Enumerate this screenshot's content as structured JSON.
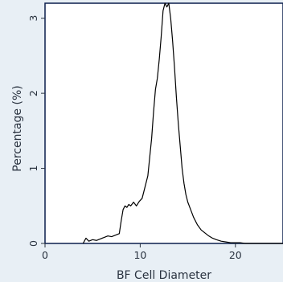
{
  "chart_data": {
    "type": "line",
    "title": "",
    "xlabel": "BF Cell Diameter",
    "ylabel": "Percentage (%)",
    "xlim": [
      0,
      25
    ],
    "ylim": [
      0,
      3.2
    ],
    "grid": false,
    "x_ticks": [
      0,
      10,
      20
    ],
    "x_tick_labels": [
      "0",
      "10",
      "20"
    ],
    "y_ticks": [
      0,
      1,
      2,
      3
    ],
    "y_tick_labels": [
      "0",
      "1",
      "2",
      "3"
    ],
    "colors": {
      "line": "#000000",
      "plot_bg": "#ffffff",
      "page_bg": "#e8eff5",
      "frame": "#0b1f4d"
    },
    "series": [
      {
        "x": [
          4.0,
          4.3,
          4.6,
          5.0,
          5.4,
          5.8,
          6.2,
          6.6,
          7.0,
          7.4,
          7.8,
          8.0,
          8.2,
          8.4,
          8.6,
          8.8,
          9.0,
          9.3,
          9.6,
          9.9,
          10.2,
          10.5,
          10.8,
          11.0,
          11.2,
          11.4,
          11.6,
          11.8,
          12.0,
          12.2,
          12.4,
          12.6,
          12.8,
          13.0,
          13.2,
          13.4,
          13.6,
          13.8,
          14.0,
          14.2,
          14.4,
          14.6,
          14.8,
          15.0,
          15.3,
          15.6,
          16.0,
          16.4,
          16.8,
          17.2,
          17.6,
          18.0,
          18.5,
          19.0,
          19.5,
          20.0,
          20.5,
          21.0,
          21.5,
          22.0,
          23.0,
          24.0,
          25.0
        ],
        "y": [
          0.0,
          0.07,
          0.03,
          0.05,
          0.04,
          0.06,
          0.08,
          0.1,
          0.09,
          0.11,
          0.13,
          0.3,
          0.45,
          0.5,
          0.48,
          0.52,
          0.5,
          0.55,
          0.5,
          0.56,
          0.6,
          0.75,
          0.9,
          1.15,
          1.4,
          1.75,
          2.05,
          2.2,
          2.45,
          2.75,
          3.1,
          3.2,
          3.15,
          3.2,
          3.0,
          2.7,
          2.35,
          1.95,
          1.6,
          1.3,
          1.0,
          0.8,
          0.65,
          0.55,
          0.45,
          0.35,
          0.25,
          0.18,
          0.14,
          0.1,
          0.07,
          0.05,
          0.03,
          0.02,
          0.01,
          0.01,
          0.01,
          0.0,
          0.0,
          0.0,
          0.0,
          0.0,
          0.0
        ]
      }
    ]
  }
}
